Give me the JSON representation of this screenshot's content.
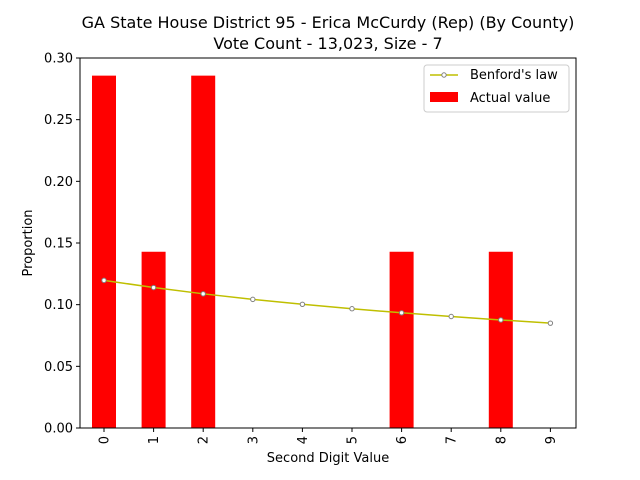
{
  "chart_data": {
    "type": "bar",
    "title": "GA State House District 95 - Erica McCurdy (Rep) (By County)",
    "subtitle": "Vote Count - 13,023, Size - 7",
    "xlabel": "Second Digit Value",
    "ylabel": "Proportion",
    "categories": [
      "0",
      "1",
      "2",
      "3",
      "4",
      "5",
      "6",
      "7",
      "8",
      "9"
    ],
    "ylim": [
      0,
      0.3
    ],
    "yticks": [
      "0.00",
      "0.05",
      "0.10",
      "0.15",
      "0.20",
      "0.25",
      "0.30"
    ],
    "grid": false,
    "legend_placement": "top-right",
    "series": [
      {
        "name": "Actual value",
        "kind": "bar",
        "color": "#ff0000",
        "values": [
          0.2857,
          0.1429,
          0.2857,
          0,
          0,
          0,
          0.1429,
          0,
          0.1429,
          0
        ]
      },
      {
        "name": "Benford's law",
        "kind": "line",
        "color": "#bfbf00",
        "marker_color": "#808080",
        "values": [
          0.1197,
          0.1139,
          0.1088,
          0.1043,
          0.1003,
          0.0967,
          0.0934,
          0.0904,
          0.0876,
          0.085
        ]
      }
    ]
  }
}
